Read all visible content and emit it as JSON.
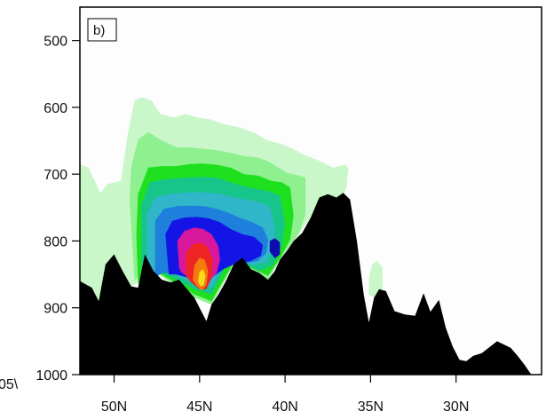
{
  "chart_data": {
    "type": "heatmap",
    "panel_label": "b)",
    "title": "",
    "xlabel": "",
    "ylabel": "",
    "x_axis": {
      "range_lat": [
        52,
        25
      ],
      "ticks": [
        {
          "value": 50,
          "label": "50N"
        },
        {
          "value": 45,
          "label": "45N"
        },
        {
          "value": 40,
          "label": "40N"
        },
        {
          "value": 35,
          "label": "35N"
        },
        {
          "value": 30,
          "label": "30N"
        }
      ]
    },
    "y_axis": {
      "range_hpa": [
        1000,
        450
      ],
      "ticks": [
        {
          "value": 500,
          "label": "500"
        },
        {
          "value": 600,
          "label": "600"
        },
        {
          "value": 700,
          "label": "700"
        },
        {
          "value": 800,
          "label": "800"
        },
        {
          "value": 900,
          "label": "900"
        },
        {
          "value": 1000,
          "label": "1000"
        }
      ]
    },
    "left_edge_fragments": [
      "05\\"
    ],
    "terrain": {
      "color": "#000000",
      "profile": [
        [
          52.0,
          860
        ],
        [
          51.3,
          870
        ],
        [
          50.9,
          890
        ],
        [
          50.5,
          835
        ],
        [
          50.0,
          820
        ],
        [
          49.5,
          845
        ],
        [
          49.0,
          868
        ],
        [
          48.6,
          870
        ],
        [
          48.2,
          820
        ],
        [
          47.7,
          845
        ],
        [
          47.2,
          858
        ],
        [
          46.7,
          862
        ],
        [
          46.2,
          858
        ],
        [
          45.8,
          870
        ],
        [
          45.3,
          885
        ],
        [
          44.9,
          905
        ],
        [
          44.6,
          920
        ],
        [
          44.3,
          895
        ],
        [
          43.9,
          880
        ],
        [
          43.5,
          862
        ],
        [
          43.0,
          835
        ],
        [
          42.5,
          825
        ],
        [
          42.0,
          842
        ],
        [
          41.5,
          848
        ],
        [
          41.0,
          858
        ],
        [
          40.6,
          845
        ],
        [
          40.3,
          828
        ],
        [
          39.9,
          815
        ],
        [
          39.5,
          800
        ],
        [
          39.0,
          788
        ],
        [
          38.5,
          765
        ],
        [
          38.0,
          735
        ],
        [
          37.5,
          730
        ],
        [
          37.0,
          735
        ],
        [
          36.6,
          728
        ],
        [
          36.2,
          738
        ],
        [
          35.8,
          800
        ],
        [
          35.4,
          880
        ],
        [
          35.1,
          922
        ],
        [
          34.8,
          885
        ],
        [
          34.5,
          872
        ],
        [
          34.1,
          875
        ],
        [
          33.6,
          905
        ],
        [
          33.0,
          910
        ],
        [
          32.4,
          912
        ],
        [
          31.9,
          878
        ],
        [
          31.5,
          906
        ],
        [
          31.0,
          888
        ],
        [
          30.6,
          930
        ],
        [
          30.2,
          958
        ],
        [
          29.8,
          978
        ],
        [
          29.4,
          980
        ],
        [
          29.0,
          972
        ],
        [
          28.5,
          968
        ],
        [
          28.0,
          958
        ],
        [
          27.6,
          950
        ],
        [
          27.2,
          955
        ],
        [
          26.8,
          960
        ],
        [
          26.4,
          972
        ],
        [
          26.0,
          985
        ],
        [
          25.6,
          1000
        ],
        [
          25.0,
          1000
        ]
      ]
    },
    "contours": [
      {
        "color": "#c9f7c9",
        "outline": [
          [
            52.0,
            860
          ],
          [
            52.0,
            685
          ],
          [
            51.5,
            690
          ],
          [
            50.8,
            728
          ],
          [
            50.4,
            715
          ],
          [
            49.6,
            710
          ],
          [
            49.2,
            640
          ],
          [
            48.8,
            590
          ],
          [
            48.4,
            585
          ],
          [
            47.8,
            590
          ],
          [
            47.3,
            610
          ],
          [
            46.5,
            615
          ],
          [
            45.8,
            610
          ],
          [
            45.1,
            615
          ],
          [
            44.4,
            618
          ],
          [
            43.6,
            625
          ],
          [
            42.7,
            630
          ],
          [
            41.8,
            638
          ],
          [
            41.0,
            650
          ],
          [
            40.2,
            655
          ],
          [
            39.5,
            663
          ],
          [
            38.8,
            672
          ],
          [
            38.0,
            680
          ],
          [
            37.2,
            690
          ],
          [
            36.5,
            686
          ],
          [
            36.3,
            690
          ],
          [
            36.4,
            720
          ],
          [
            36.6,
            730
          ],
          [
            37.0,
            735
          ],
          [
            38.0,
            735
          ],
          [
            38.5,
            765
          ],
          [
            39.5,
            800
          ],
          [
            40.3,
            828
          ],
          [
            41.0,
            858
          ],
          [
            42.0,
            842
          ],
          [
            43.0,
            835
          ],
          [
            44.3,
            895
          ],
          [
            45.3,
            885
          ],
          [
            46.7,
            862
          ],
          [
            47.7,
            845
          ],
          [
            48.4,
            860
          ],
          [
            49.0,
            868
          ],
          [
            49.8,
            835
          ],
          [
            50.9,
            890
          ],
          [
            51.3,
            870
          ]
        ]
      },
      {
        "color": "#c9f7c9",
        "outline": [
          [
            35.1,
            855
          ],
          [
            34.9,
            835
          ],
          [
            34.6,
            830
          ],
          [
            34.3,
            840
          ],
          [
            34.3,
            878
          ],
          [
            34.8,
            885
          ],
          [
            35.1,
            880
          ]
        ]
      },
      {
        "color": "#8ef08e",
        "outline": [
          [
            48.8,
            860
          ],
          [
            49.1,
            740
          ],
          [
            49.0,
            690
          ],
          [
            48.6,
            648
          ],
          [
            48.0,
            637
          ],
          [
            47.2,
            650
          ],
          [
            46.3,
            660
          ],
          [
            45.6,
            660
          ],
          [
            44.8,
            662
          ],
          [
            44.0,
            664
          ],
          [
            43.2,
            668
          ],
          [
            42.4,
            673
          ],
          [
            41.6,
            675
          ],
          [
            40.9,
            682
          ],
          [
            40.4,
            690
          ],
          [
            39.9,
            698
          ],
          [
            39.2,
            702
          ],
          [
            38.8,
            705
          ],
          [
            38.8,
            760
          ],
          [
            39.2,
            790
          ],
          [
            39.6,
            802
          ],
          [
            40.3,
            828
          ],
          [
            41.0,
            858
          ],
          [
            42.0,
            842
          ],
          [
            43.0,
            835
          ],
          [
            44.3,
            895
          ],
          [
            45.3,
            885
          ],
          [
            46.7,
            862
          ],
          [
            47.7,
            845
          ],
          [
            48.2,
            838
          ]
        ]
      },
      {
        "color": "#1fe01f",
        "outline": [
          [
            48.6,
            865
          ],
          [
            48.7,
            790
          ],
          [
            48.6,
            730
          ],
          [
            48.0,
            690
          ],
          [
            47.2,
            688
          ],
          [
            46.4,
            688
          ],
          [
            45.6,
            685
          ],
          [
            44.8,
            684
          ],
          [
            44.0,
            686
          ],
          [
            43.2,
            690
          ],
          [
            42.4,
            700
          ],
          [
            41.6,
            702
          ],
          [
            40.8,
            710
          ],
          [
            40.2,
            712
          ],
          [
            39.7,
            720
          ],
          [
            39.5,
            762
          ],
          [
            39.7,
            798
          ],
          [
            40.3,
            826
          ],
          [
            41.0,
            852
          ],
          [
            42.0,
            840
          ],
          [
            43.0,
            832
          ],
          [
            44.3,
            890
          ],
          [
            45.3,
            880
          ],
          [
            46.7,
            858
          ],
          [
            47.6,
            845
          ],
          [
            48.3,
            850
          ]
        ]
      },
      {
        "color": "#16c58a",
        "outline": [
          [
            48.4,
            865
          ],
          [
            48.4,
            745
          ],
          [
            47.9,
            712
          ],
          [
            47.1,
            708
          ],
          [
            46.3,
            706
          ],
          [
            45.5,
            705
          ],
          [
            44.7,
            704
          ],
          [
            43.9,
            706
          ],
          [
            43.2,
            712
          ],
          [
            42.4,
            718
          ],
          [
            41.7,
            722
          ],
          [
            40.9,
            726
          ],
          [
            40.3,
            732
          ],
          [
            40.0,
            775
          ],
          [
            40.2,
            808
          ],
          [
            40.7,
            836
          ],
          [
            41.5,
            845
          ],
          [
            42.5,
            832
          ],
          [
            43.4,
            836
          ],
          [
            44.3,
            880
          ],
          [
            45.3,
            872
          ],
          [
            46.5,
            856
          ],
          [
            47.5,
            845
          ],
          [
            48.1,
            852
          ]
        ]
      },
      {
        "color": "#2fb6c8",
        "outline": [
          [
            48.1,
            862
          ],
          [
            48.1,
            760
          ],
          [
            47.6,
            735
          ],
          [
            46.8,
            730
          ],
          [
            46.0,
            728
          ],
          [
            45.2,
            727
          ],
          [
            44.4,
            728
          ],
          [
            43.7,
            730
          ],
          [
            43.0,
            735
          ],
          [
            42.2,
            738
          ],
          [
            41.5,
            742
          ],
          [
            40.9,
            748
          ],
          [
            40.6,
            778
          ],
          [
            40.6,
            808
          ],
          [
            41.1,
            832
          ],
          [
            41.9,
            836
          ],
          [
            42.8,
            830
          ],
          [
            43.6,
            838
          ],
          [
            44.3,
            870
          ],
          [
            45.3,
            864
          ],
          [
            46.3,
            852
          ],
          [
            47.3,
            845
          ],
          [
            47.9,
            850
          ]
        ]
      },
      {
        "color": "#1e7fdc",
        "outline": [
          [
            47.6,
            855
          ],
          [
            47.6,
            770
          ],
          [
            47.1,
            752
          ],
          [
            46.3,
            748
          ],
          [
            45.5,
            747
          ],
          [
            44.7,
            748
          ],
          [
            44.0,
            752
          ],
          [
            43.3,
            758
          ],
          [
            42.6,
            766
          ],
          [
            41.9,
            772
          ],
          [
            41.3,
            780
          ],
          [
            41.0,
            798
          ],
          [
            41.1,
            818
          ],
          [
            41.6,
            830
          ],
          [
            42.4,
            834
          ],
          [
            43.3,
            834
          ],
          [
            44.0,
            850
          ],
          [
            44.7,
            860
          ],
          [
            45.6,
            856
          ],
          [
            46.5,
            848
          ],
          [
            47.2,
            848
          ]
        ]
      },
      {
        "color": "#1414e6",
        "outline": [
          [
            46.8,
            850
          ],
          [
            47.0,
            790
          ],
          [
            46.6,
            770
          ],
          [
            45.9,
            765
          ],
          [
            45.2,
            764
          ],
          [
            44.5,
            766
          ],
          [
            43.8,
            772
          ],
          [
            43.2,
            782
          ],
          [
            42.5,
            790
          ],
          [
            41.8,
            794
          ],
          [
            41.3,
            806
          ],
          [
            41.4,
            822
          ],
          [
            42.0,
            830
          ],
          [
            42.9,
            834
          ],
          [
            43.6,
            842
          ],
          [
            44.3,
            855
          ],
          [
            45.0,
            858
          ],
          [
            45.8,
            854
          ],
          [
            46.4,
            850
          ]
        ]
      },
      {
        "color": "#d7189c",
        "outline": [
          [
            46.2,
            840
          ],
          [
            46.3,
            800
          ],
          [
            45.9,
            785
          ],
          [
            45.3,
            780
          ],
          [
            44.8,
            782
          ],
          [
            44.3,
            790
          ],
          [
            43.9,
            808
          ],
          [
            43.8,
            828
          ],
          [
            44.0,
            848
          ],
          [
            44.5,
            862
          ],
          [
            45.1,
            862
          ],
          [
            45.7,
            854
          ],
          [
            46.1,
            846
          ]
        ]
      },
      {
        "color": "#ee2424",
        "outline": [
          [
            45.8,
            852
          ],
          [
            45.8,
            818
          ],
          [
            45.4,
            805
          ],
          [
            44.9,
            802
          ],
          [
            44.5,
            810
          ],
          [
            44.2,
            830
          ],
          [
            44.3,
            855
          ],
          [
            44.6,
            872
          ],
          [
            45.0,
            872
          ],
          [
            45.5,
            862
          ]
        ]
      },
      {
        "color": "#f47a0e",
        "outline": [
          [
            45.4,
            858
          ],
          [
            45.3,
            836
          ],
          [
            45.0,
            825
          ],
          [
            44.7,
            828
          ],
          [
            44.5,
            845
          ],
          [
            44.6,
            866
          ],
          [
            44.9,
            874
          ],
          [
            45.2,
            866
          ]
        ]
      },
      {
        "color": "#f8dc1c",
        "outline": [
          [
            45.1,
            860
          ],
          [
            45.0,
            846
          ],
          [
            44.8,
            842
          ],
          [
            44.65,
            852
          ],
          [
            44.75,
            866
          ],
          [
            44.95,
            868
          ]
        ]
      },
      {
        "color": "#0c0cb0",
        "outline": [
          [
            40.9,
            816
          ],
          [
            40.9,
            800
          ],
          [
            40.6,
            796
          ],
          [
            40.3,
            802
          ],
          [
            40.3,
            820
          ],
          [
            40.6,
            826
          ]
        ]
      }
    ]
  }
}
